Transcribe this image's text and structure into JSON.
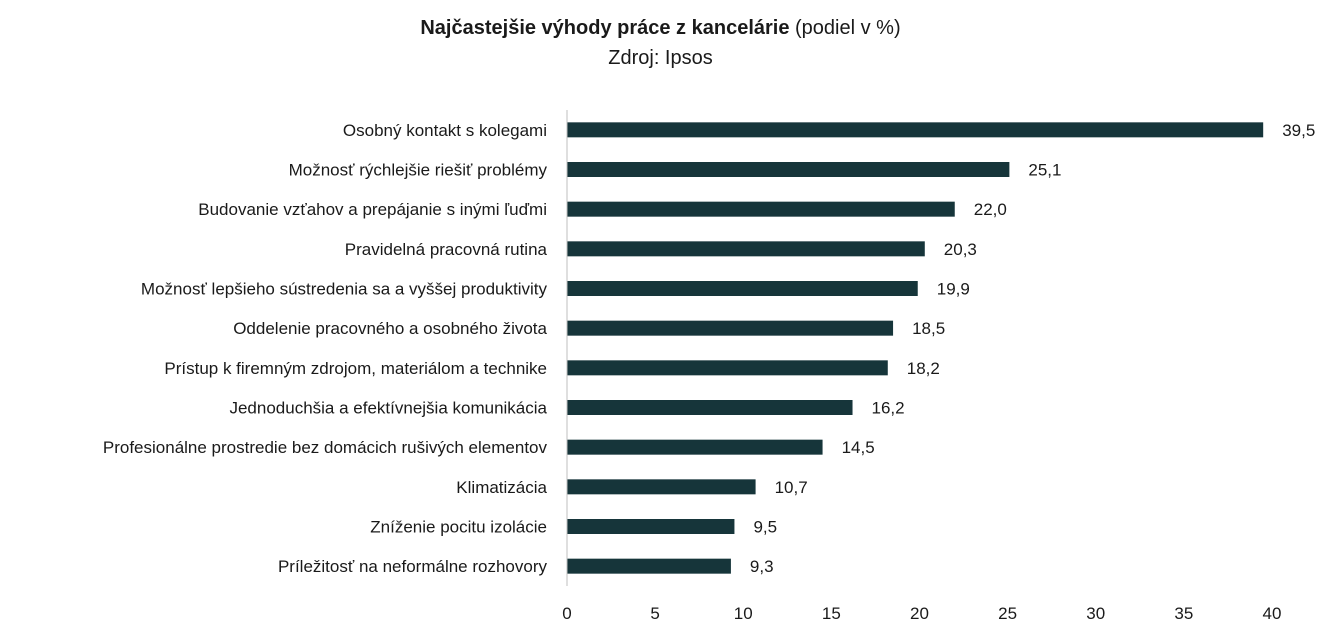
{
  "title": {
    "bold": "Najčastejšie výhody práce z kancelárie",
    "normal": " (podiel v %)"
  },
  "subtitle": "Zdroj: Ipsos",
  "colors": {
    "bar": "#16353a",
    "axis": "#bfbfbf",
    "text": "#1a1a1a"
  },
  "chart_data": {
    "type": "bar",
    "orientation": "horizontal",
    "title": "Najčastejšie výhody práce z kancelárie (podiel v %)",
    "subtitle": "Zdroj: Ipsos",
    "xlabel": "",
    "ylabel": "",
    "xlim": [
      0,
      40
    ],
    "xticks": [
      0,
      5,
      10,
      15,
      20,
      25,
      30,
      35,
      40
    ],
    "grid": false,
    "legend": "none",
    "categories": [
      "Osobný kontakt s kolegami",
      "Možnosť rýchlejšie riešiť problémy",
      "Budovanie vzťahov a prepájanie s inými ľuďmi",
      "Pravidelná pracovná rutina",
      "Možnosť lepšieho sústredenia sa a vyššej produktivity",
      "Oddelenie pracovného a osobného života",
      "Prístup k firemným zdrojom, materiálom a technike",
      "Jednoduchšia a efektívnejšia komunikácia",
      "Profesionálne prostredie bez domácich rušivých elementov",
      "Klimatizácia",
      "Zníženie pocitu izolácie",
      "Príležitosť na neformálne rozhovory"
    ],
    "values": [
      39.5,
      25.1,
      22.0,
      20.3,
      19.9,
      18.5,
      18.2,
      16.2,
      14.5,
      10.7,
      9.5,
      9.3
    ],
    "value_labels": [
      "39,5",
      "25,1",
      "22,0",
      "20,3",
      "19,9",
      "18,5",
      "18,2",
      "16,2",
      "14,5",
      "10,7",
      "9,5",
      "9,3"
    ],
    "tick_labels": [
      "0",
      "5",
      "10",
      "15",
      "20",
      "25",
      "30",
      "35",
      "40"
    ]
  }
}
